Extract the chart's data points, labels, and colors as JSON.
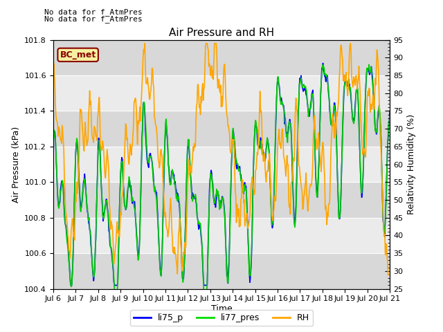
{
  "title": "Air Pressure and RH",
  "xlabel": "Time",
  "ylabel_left": "Air Pressure (kPa)",
  "ylabel_right": "Relativity Humidity (%)",
  "annotation_line1": "No data for f_AtmPres",
  "annotation_line2": "No data for f_AtmPres",
  "legend_label": "BC_met",
  "legend_entries": [
    "li75_p",
    "li77_pres",
    "RH"
  ],
  "legend_colors": [
    "blue",
    "#00dd00",
    "orange"
  ],
  "ylim_left": [
    100.4,
    101.8
  ],
  "ylim_right": [
    25,
    95
  ],
  "yticks_left": [
    100.4,
    100.6,
    100.8,
    101.0,
    101.2,
    101.4,
    101.6,
    101.8
  ],
  "yticks_right": [
    25,
    30,
    35,
    40,
    45,
    50,
    55,
    60,
    65,
    70,
    75,
    80,
    85,
    90,
    95
  ],
  "xticklabels": [
    "Jul 6",
    "Jul 7",
    "Jul 8",
    "Jul 9",
    "Jul 10",
    "Jul 11",
    "Jul 12",
    "Jul 13",
    "Jul 14",
    "Jul 15",
    "Jul 16",
    "Jul 17",
    "Jul 18",
    "Jul 19",
    "Jul 20",
    "Jul 21"
  ],
  "plot_bg_light": "#ebebeb",
  "plot_bg_dark": "#d8d8d8",
  "grid_color": "white",
  "line_color_li75": "blue",
  "line_color_li77": "#00cc00",
  "line_color_rh": "orange",
  "line_width": 1.2,
  "figsize": [
    6.4,
    4.8
  ],
  "dpi": 100
}
